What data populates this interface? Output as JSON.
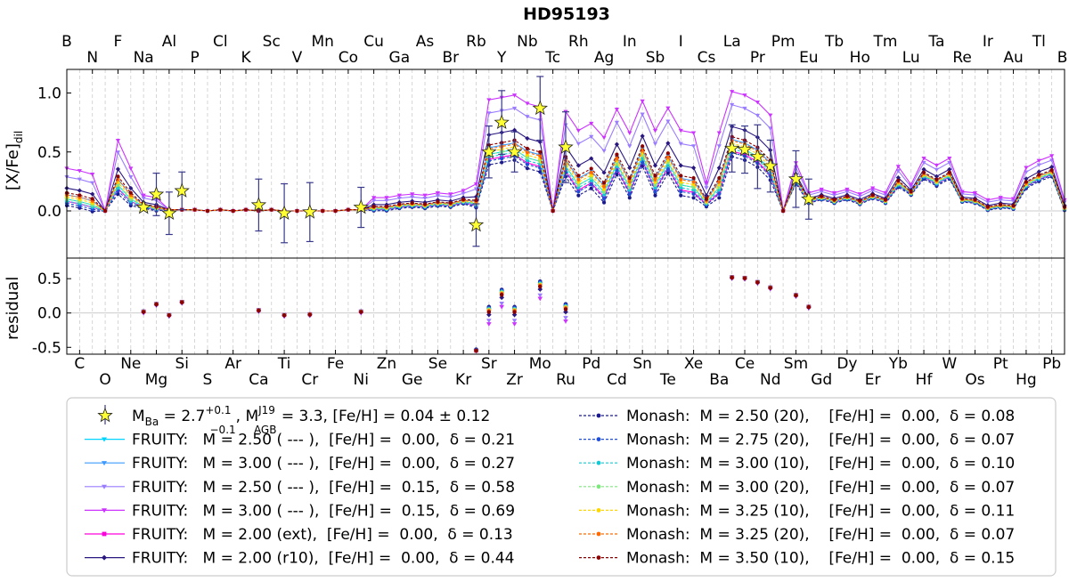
{
  "chart_data": {
    "type": "line",
    "title": "HD95193",
    "top_panel": {
      "ylabel": "[X/Fe]",
      "ylabel_subscript": "dil",
      "ylim": [
        -0.4,
        1.2
      ],
      "yticks": [
        "0.0",
        "0.5",
        "1.0"
      ]
    },
    "bottom_panel": {
      "ylabel": "residual",
      "ylim": [
        -0.6,
        0.8
      ],
      "yticks": [
        "-0.5",
        "0.0",
        "0.5"
      ]
    },
    "elements_top": [
      "B",
      "N",
      "F",
      "Na",
      "Al",
      "P",
      "Cl",
      "K",
      "Sc",
      "V",
      "Mn",
      "Co",
      "Cu",
      "Ga",
      "As",
      "Br",
      "Rb",
      "Y",
      "Nb",
      "Tc",
      "Rh",
      "Ag",
      "In",
      "Sb",
      "I",
      "Cs",
      "La",
      "Pr",
      "Pm",
      "Eu",
      "Tb",
      "Ho",
      "Tm",
      "Lu",
      "Ta",
      "Re",
      "Ir",
      "Au",
      "Tl",
      "Bi"
    ],
    "elements_bottom": [
      "C",
      "O",
      "Ne",
      "Mg",
      "Si",
      "S",
      "Ar",
      "Ca",
      "Ti",
      "Cr",
      "Fe",
      "Ni",
      "Zn",
      "Ge",
      "Se",
      "Kr",
      "Sr",
      "Zr",
      "Mo",
      "Ru",
      "Pd",
      "Cd",
      "Sn",
      "Te",
      "Xe",
      "Ba",
      "Ce",
      "Nd",
      "Sm",
      "Gd",
      "Dy",
      "Er",
      "Yb",
      "Hf",
      "W",
      "Os",
      "Pt",
      "Hg",
      "Pb"
    ],
    "observations": [
      {
        "el": "Na",
        "z": 11,
        "y": 0.03,
        "err": 0.0
      },
      {
        "el": "Mg",
        "z": 12,
        "y": 0.14,
        "err": 0.18
      },
      {
        "el": "Al",
        "z": 13,
        "y": -0.02,
        "err": 0.18
      },
      {
        "el": "Si",
        "z": 14,
        "y": 0.17,
        "err": 0.16
      },
      {
        "el": "Ca",
        "z": 20,
        "y": 0.05,
        "err": 0.22
      },
      {
        "el": "Ti",
        "z": 22,
        "y": -0.02,
        "err": 0.25
      },
      {
        "el": "Cr",
        "z": 24,
        "y": -0.01,
        "err": 0.25
      },
      {
        "el": "Ni",
        "z": 28,
        "y": 0.03,
        "err": 0.17
      },
      {
        "el": "Rb",
        "z": 37,
        "y": -0.12,
        "err": 0.18
      },
      {
        "el": "Sr",
        "z": 38,
        "y": 0.5,
        "err": 0.22
      },
      {
        "el": "Y",
        "z": 39,
        "y": 0.75,
        "err": 0.27
      },
      {
        "el": "Zr",
        "z": 40,
        "y": 0.5,
        "err": 0.17
      },
      {
        "el": "Mo",
        "z": 42,
        "y": 0.87,
        "err": 0.27
      },
      {
        "el": "Ru",
        "z": 44,
        "y": 0.54,
        "err": 0.3
      },
      {
        "el": "Nd",
        "z": 60,
        "y": 0.38,
        "err": 0.22
      },
      {
        "el": "Ce",
        "z": 58,
        "y": 0.52,
        "err": 0.2
      },
      {
        "el": "La",
        "z": 57,
        "y": 0.53,
        "err": 0.2
      },
      {
        "el": "Pr",
        "z": 59,
        "y": 0.46,
        "err": 0.27
      },
      {
        "el": "Sm",
        "z": 62,
        "y": 0.27,
        "err": 0.24
      },
      {
        "el": "Eu",
        "z": 63,
        "y": 0.1,
        "err": 0.17
      }
    ],
    "series": [
      {
        "name": "FRUITY:   M = 2.50 ( --- ),  [Fe/H] =  0.00,  δ = 0.21",
        "color": "#00d4ff",
        "marker": "tri",
        "dash": false,
        "boost": 0.0,
        "offset": 0.0
      },
      {
        "name": "FRUITY:   M = 3.00 ( --- ),  [Fe/H] =  0.00,  δ = 0.27",
        "color": "#3d9bff",
        "marker": "tri",
        "dash": false,
        "boost": 0.05,
        "offset": 0.02
      },
      {
        "name": "FRUITY:   M = 2.50 ( --- ),  [Fe/H] =  0.15,  δ = 0.58",
        "color": "#9a7cff",
        "marker": "tri",
        "dash": false,
        "boost": 0.32,
        "offset": 0.1
      },
      {
        "name": "FRUITY:   M = 3.00 ( --- ),  [Fe/H] =  0.15,  δ = 0.69",
        "color": "#cc33ff",
        "marker": "tri",
        "dash": false,
        "boost": 0.42,
        "offset": 0.14
      },
      {
        "name": "FRUITY:   M = 2.00 (ext),  [Fe/H] =  0.00,  δ = 0.13",
        "color": "#ff00dd",
        "marker": "square",
        "dash": false,
        "boost": -0.04,
        "offset": -0.01
      },
      {
        "name": "FRUITY:   M = 2.00 (r10),  [Fe/H] =  0.00,  δ = 0.44",
        "color": "#2a1880",
        "marker": "diamond",
        "dash": false,
        "boost": 0.15,
        "offset": 0.05
      },
      {
        "name": "Monash:  M = 2.50 (20),    [Fe/H] =  0.00,  δ = 0.08",
        "color": "#1a1a8c",
        "marker": "circle",
        "dash": true,
        "boost": -0.08,
        "offset": -0.03
      },
      {
        "name": "Monash:  M = 2.75 (20),    [Fe/H] =  0.00,  δ = 0.07",
        "color": "#1f4fd9",
        "marker": "circle",
        "dash": true,
        "boost": -0.05,
        "offset": -0.02
      },
      {
        "name": "Monash:  M = 3.00 (10),    [Fe/H] =  0.00,  δ = 0.10",
        "color": "#14c8d4",
        "marker": "circle",
        "dash": true,
        "boost": -0.02,
        "offset": -0.01
      },
      {
        "name": "Monash:  M = 3.00 (20),    [Fe/H] =  0.00,  δ = 0.07",
        "color": "#7ee87e",
        "marker": "circle",
        "dash": true,
        "boost": 0.0,
        "offset": 0.0
      },
      {
        "name": "Monash:  M = 3.25 (10),    [Fe/H] =  0.00,  δ = 0.11",
        "color": "#ffd700",
        "marker": "circle",
        "dash": true,
        "boost": 0.02,
        "offset": 0.01
      },
      {
        "name": "Monash:  M = 3.25 (20),    [Fe/H] =  0.00,  δ = 0.07",
        "color": "#ff6a00",
        "marker": "circle",
        "dash": true,
        "boost": 0.04,
        "offset": 0.02
      },
      {
        "name": "Monash:  M = 3.50 (10),    [Fe/H] =  0.00,  δ = 0.15",
        "color": "#8b0000",
        "marker": "circle",
        "dash": true,
        "boost": 0.07,
        "offset": 0.03
      }
    ],
    "base_profile": [
      {
        "z": 5,
        "y": 0.1
      },
      {
        "z": 6,
        "y": 0.08
      },
      {
        "z": 7,
        "y": 0.05
      },
      {
        "z": 8,
        "y": 0.0
      },
      {
        "z": 9,
        "y": 0.22
      },
      {
        "z": 10,
        "y": 0.1
      },
      {
        "z": 11,
        "y": 0.04
      },
      {
        "z": 12,
        "y": 0.02
      },
      {
        "z": 13,
        "y": 0.01
      },
      {
        "z": 14,
        "y": 0.01
      },
      {
        "z": 15,
        "y": 0.01
      },
      {
        "z": 16,
        "y": 0.0
      },
      {
        "z": 17,
        "y": 0.01
      },
      {
        "z": 18,
        "y": 0.0
      },
      {
        "z": 19,
        "y": 0.01
      },
      {
        "z": 20,
        "y": 0.0
      },
      {
        "z": 21,
        "y": 0.01
      },
      {
        "z": 22,
        "y": 0.0
      },
      {
        "z": 23,
        "y": 0.0
      },
      {
        "z": 24,
        "y": 0.0
      },
      {
        "z": 25,
        "y": 0.0
      },
      {
        "z": 26,
        "y": 0.0
      },
      {
        "z": 27,
        "y": 0.01
      },
      {
        "z": 28,
        "y": 0.01
      },
      {
        "z": 29,
        "y": 0.02
      },
      {
        "z": 30,
        "y": 0.02
      },
      {
        "z": 31,
        "y": 0.04
      },
      {
        "z": 32,
        "y": 0.05
      },
      {
        "z": 33,
        "y": 0.04
      },
      {
        "z": 34,
        "y": 0.06
      },
      {
        "z": 35,
        "y": 0.05
      },
      {
        "z": 36,
        "y": 0.08
      },
      {
        "z": 37,
        "y": 0.06
      },
      {
        "z": 38,
        "y": 0.48
      },
      {
        "z": 39,
        "y": 0.5
      },
      {
        "z": 40,
        "y": 0.52
      },
      {
        "z": 41,
        "y": 0.45
      },
      {
        "z": 42,
        "y": 0.42
      },
      {
        "z": 43,
        "y": 0.0
      },
      {
        "z": 44,
        "y": 0.38
      },
      {
        "z": 45,
        "y": 0.22
      },
      {
        "z": 46,
        "y": 0.28
      },
      {
        "z": 47,
        "y": 0.16
      },
      {
        "z": 48,
        "y": 0.4
      },
      {
        "z": 49,
        "y": 0.2
      },
      {
        "z": 50,
        "y": 0.47
      },
      {
        "z": 51,
        "y": 0.22
      },
      {
        "z": 52,
        "y": 0.41
      },
      {
        "z": 53,
        "y": 0.22
      },
      {
        "z": 54,
        "y": 0.2
      },
      {
        "z": 55,
        "y": 0.07
      },
      {
        "z": 56,
        "y": 0.2
      },
      {
        "z": 57,
        "y": 0.55
      },
      {
        "z": 58,
        "y": 0.52
      },
      {
        "z": 59,
        "y": 0.46
      },
      {
        "z": 60,
        "y": 0.35
      },
      {
        "z": 61,
        "y": 0.0
      },
      {
        "z": 62,
        "y": 0.26
      },
      {
        "z": 63,
        "y": 0.08
      },
      {
        "z": 64,
        "y": 0.11
      },
      {
        "z": 65,
        "y": 0.08
      },
      {
        "z": 66,
        "y": 0.11
      },
      {
        "z": 67,
        "y": 0.07
      },
      {
        "z": 68,
        "y": 0.12
      },
      {
        "z": 69,
        "y": 0.08
      },
      {
        "z": 70,
        "y": 0.23
      },
      {
        "z": 71,
        "y": 0.15
      },
      {
        "z": 72,
        "y": 0.3
      },
      {
        "z": 73,
        "y": 0.24
      },
      {
        "z": 74,
        "y": 0.3
      },
      {
        "z": 75,
        "y": 0.09
      },
      {
        "z": 76,
        "y": 0.08
      },
      {
        "z": 77,
        "y": 0.02
      },
      {
        "z": 78,
        "y": 0.04
      },
      {
        "z": 79,
        "y": 0.03
      },
      {
        "z": 80,
        "y": 0.22
      },
      {
        "z": 81,
        "y": 0.28
      },
      {
        "z": 82,
        "y": 0.32
      },
      {
        "z": 83,
        "y": 0.02
      }
    ],
    "legend": {
      "obs_label": "M",
      "obs_label_sub": "Ba",
      "obs_mass": " = 2.7",
      "obs_mass_sup": "+0.1",
      "obs_mass_sub": "−0.1",
      "obs_agb": ", M",
      "obs_agb_sup": "J19",
      "obs_agb_sub": "AGB",
      "obs_rest": " = 3.3, [Fe/H] = 0.04 ± 0.12"
    },
    "grid": true
  }
}
